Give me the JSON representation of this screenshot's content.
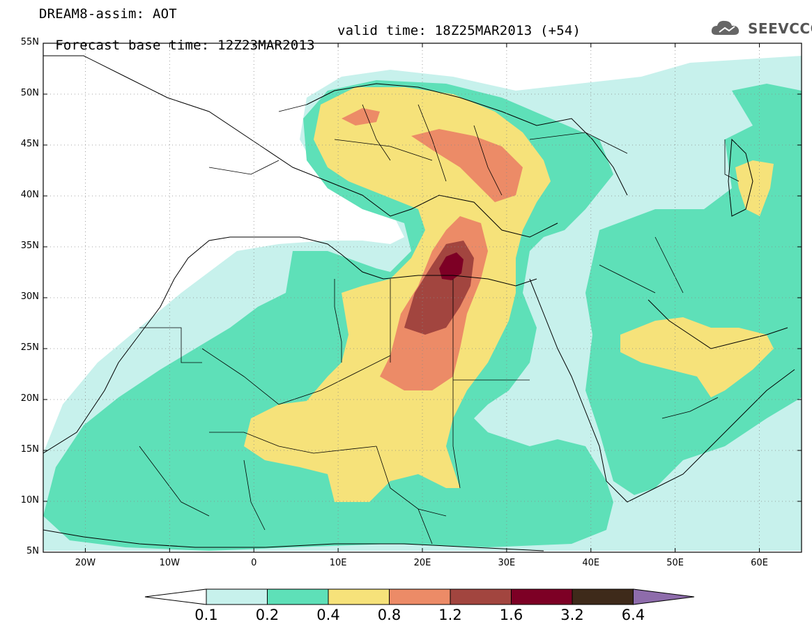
{
  "header": {
    "line1": "DREAM8-assim: AOT",
    "line2": "Forecast base time: 12Z23MAR2013",
    "valid": "valid time: 18Z25MAR2013 (+54)"
  },
  "logo": {
    "text": "SEEVCCC",
    "icon": "cloud-icon",
    "color": "#555555"
  },
  "map": {
    "variable": "AOT",
    "lat_range": [
      5,
      55
    ],
    "lon_range": [
      -25,
      65
    ],
    "lat_ticks": [
      "55N",
      "50N",
      "45N",
      "40N",
      "35N",
      "30N",
      "25N",
      "20N",
      "15N",
      "10N",
      "5N"
    ],
    "lon_ticks": [
      "20W",
      "10W",
      "0",
      "10E",
      "20E",
      "30E",
      "40E",
      "50E",
      "60E"
    ],
    "grid": "dotted"
  },
  "colorbar": {
    "ticks": [
      "0.1",
      "0.2",
      "0.4",
      "0.8",
      "1.2",
      "1.6",
      "3.2",
      "6.4"
    ],
    "colors": [
      "#c7f1ec",
      "#5ee0b8",
      "#f6e27a",
      "#ec8b67",
      "#a2453f",
      "#7d0025",
      "#3e2a1a"
    ],
    "under_color": "#ffffff",
    "over_color": "#8e6cab"
  }
}
